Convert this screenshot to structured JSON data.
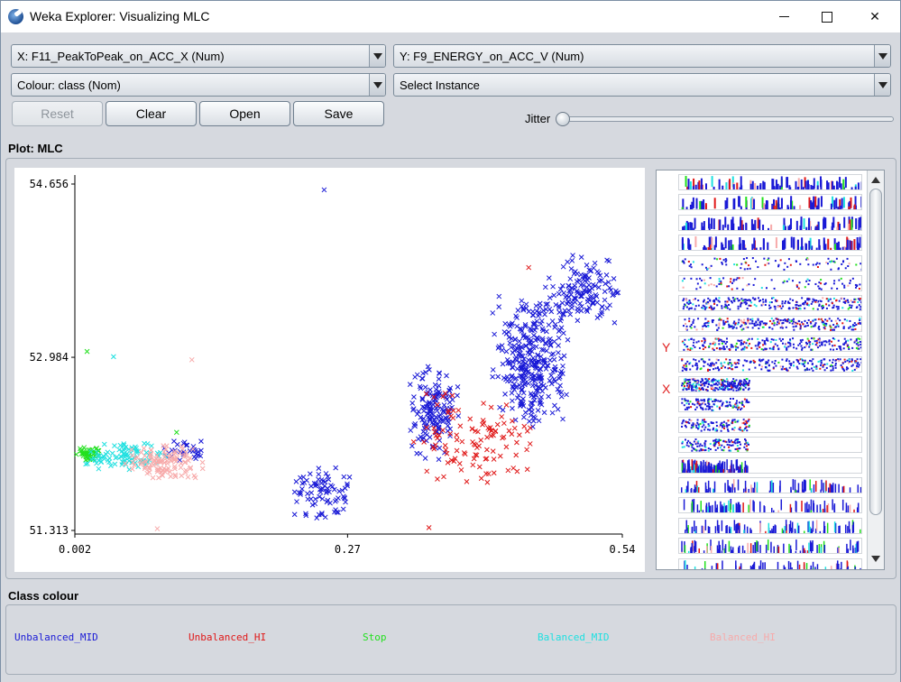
{
  "window": {
    "title": "Weka Explorer: Visualizing MLC"
  },
  "controls": {
    "x_axis": "X: F11_PeakToPeak_on_ACC_X (Num)",
    "y_axis": "Y: F9_ENERGY_on_ACC_V (Num)",
    "colour": "Colour: class (Nom)",
    "select_instance": "Select Instance",
    "reset": "Reset",
    "clear": "Clear",
    "open": "Open",
    "save": "Save",
    "jitter": "Jitter",
    "jitter_level": 0
  },
  "plot": {
    "label": "Plot: MLC",
    "matrix_y_marker": "Y",
    "matrix_x_marker": "X"
  },
  "legend": {
    "label": "Class colour",
    "classes": [
      {
        "name": "Unbalanced_MID",
        "color": "#1a1ad6"
      },
      {
        "name": "Unbalanced_HI",
        "color": "#e01818"
      },
      {
        "name": "Stop",
        "color": "#22e01e"
      },
      {
        "name": "Balanced_MID",
        "color": "#1ee0e0"
      },
      {
        "name": "Balanced_HI",
        "color": "#f7aaaa"
      }
    ]
  },
  "chart_data": {
    "type": "scatter",
    "title": "",
    "xlabel": "",
    "ylabel": "",
    "x_ticks": [
      "0.002",
      "0.27",
      "0.54"
    ],
    "y_ticks": [
      "54.656",
      "52.984",
      "51.313"
    ],
    "xlim": [
      0.002,
      0.54
    ],
    "ylim": [
      51.313,
      54.656
    ],
    "grid": false,
    "series": [
      {
        "name": "Unbalanced_MID",
        "color": "#1a1ad6",
        "clusters": [
          {
            "x": [
              0.08,
              0.14
            ],
            "y": [
              51.95,
              52.2
            ]
          },
          {
            "x": [
              0.21,
              0.28
            ],
            "y": [
              51.4,
              51.95
            ],
            "n": 80
          },
          {
            "x": [
              0.33,
              0.38
            ],
            "y": [
              51.95,
              52.95
            ],
            "n": 160
          },
          {
            "x": [
              0.41,
              0.49
            ],
            "y": [
              52.3,
              53.6
            ],
            "n": 340
          },
          {
            "x": [
              0.46,
              0.54
            ],
            "y": [
              53.2,
              54.0
            ],
            "n": 140
          }
        ],
        "points": [
          [
            0.247,
            54.6
          ]
        ]
      },
      {
        "name": "Unbalanced_HI",
        "color": "#e01818",
        "clusters": [
          {
            "x": [
              0.33,
              0.46
            ],
            "y": [
              51.7,
              52.7
            ],
            "n": 110
          }
        ],
        "points": [
          [
            0.448,
            53.85
          ],
          [
            0.35,
            51.34
          ]
        ]
      },
      {
        "name": "Stop",
        "color": "#22e01e",
        "clusters": [
          {
            "x": [
              0.002,
              0.03
            ],
            "y": [
              51.98,
              52.12
            ],
            "n": 40
          }
        ],
        "points": [
          [
            0.014,
            53.04
          ],
          [
            0.102,
            52.26
          ]
        ]
      },
      {
        "name": "Balanced_MID",
        "color": "#1ee0e0",
        "clusters": [
          {
            "x": [
              0.01,
              0.095
            ],
            "y": [
              51.88,
              52.18
            ],
            "n": 90
          }
        ],
        "points": [
          [
            0.04,
            52.99
          ]
        ]
      },
      {
        "name": "Balanced_HI",
        "color": "#f7aaaa",
        "clusters": [
          {
            "x": [
              0.05,
              0.13
            ],
            "y": [
              51.78,
              52.18
            ],
            "n": 110
          }
        ],
        "points": [
          [
            0.117,
            52.96
          ],
          [
            0.083,
            51.33
          ]
        ]
      }
    ]
  }
}
